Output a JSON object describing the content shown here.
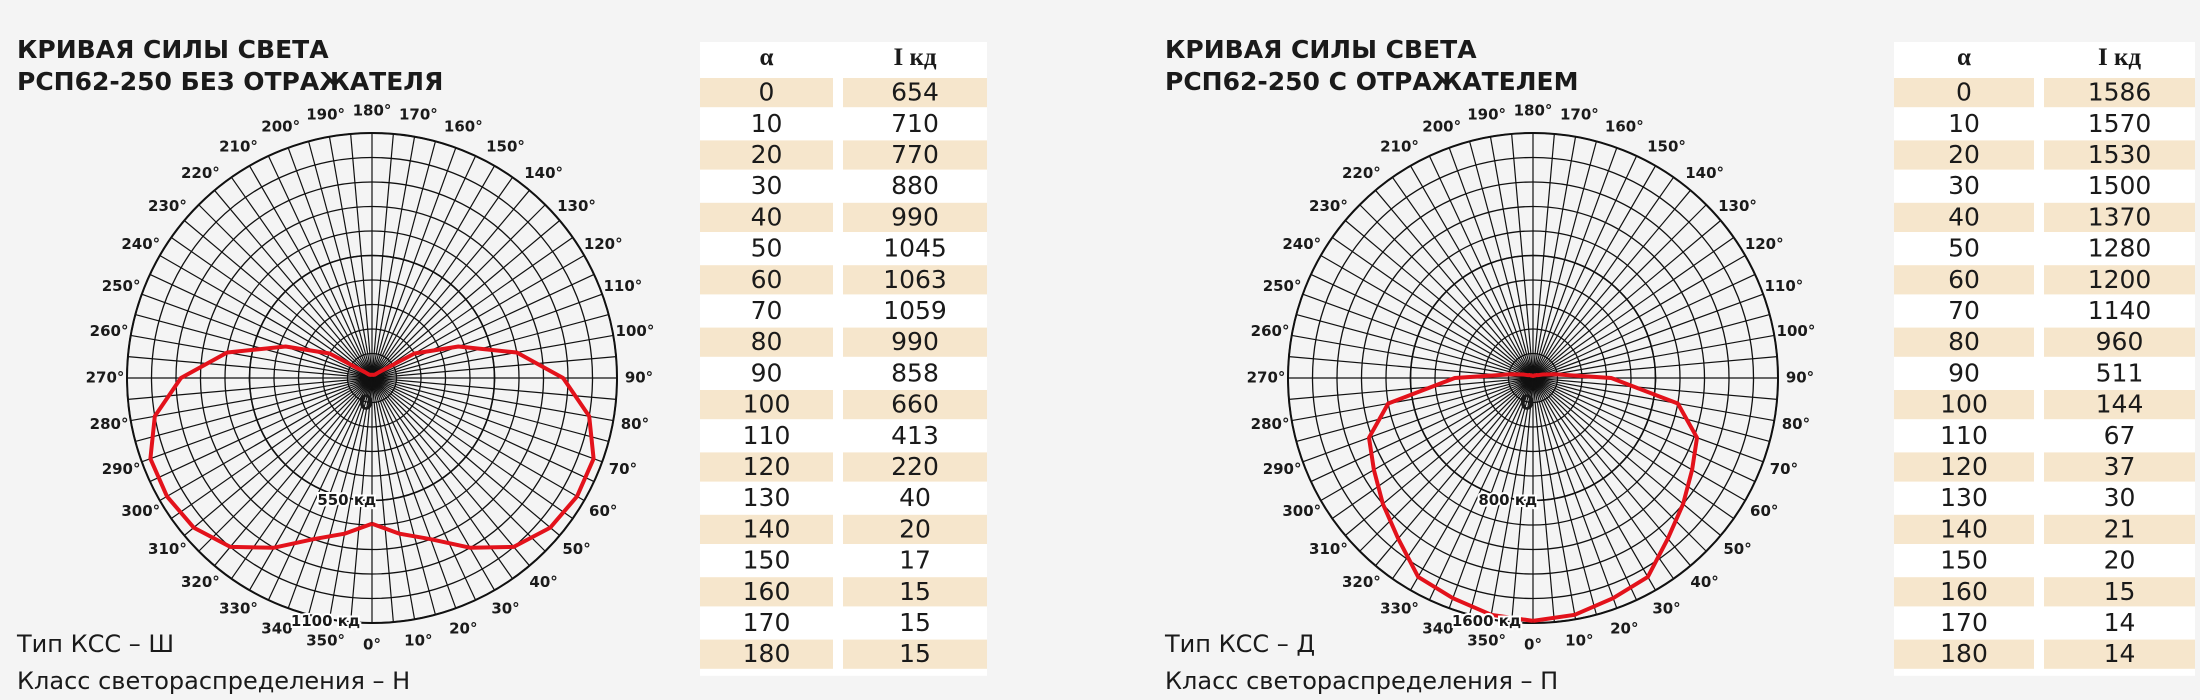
{
  "panels": [
    {
      "title": [
        "КРИВАЯ СИЛЫ СВЕТА",
        "РСП62-250 БЕЗ ОТРАЖАТЕЛЯ"
      ],
      "angle_labels": [
        {
          "value": 0,
          "label": "0°"
        },
        {
          "value": 10,
          "label": "10°"
        },
        {
          "value": 20,
          "label": "20°"
        },
        {
          "value": 30,
          "label": "30°"
        },
        {
          "value": 40,
          "label": "40°"
        },
        {
          "value": 50,
          "label": "50°"
        },
        {
          "value": 60,
          "label": "60°"
        },
        {
          "value": 70,
          "label": "70°"
        },
        {
          "value": 80,
          "label": "80°"
        },
        {
          "value": 90,
          "label": "90°"
        },
        {
          "value": 100,
          "label": "100°"
        },
        {
          "value": 110,
          "label": "110°"
        },
        {
          "value": 120,
          "label": "120°"
        },
        {
          "value": 130,
          "label": "130°"
        },
        {
          "value": 140,
          "label": "140°"
        },
        {
          "value": 150,
          "label": "150°"
        },
        {
          "value": 160,
          "label": "160°"
        },
        {
          "value": 170,
          "label": "170°"
        },
        {
          "value": 180,
          "label": "180°"
        },
        {
          "value": 190,
          "label": "190°"
        },
        {
          "value": 200,
          "label": "200°"
        },
        {
          "value": 210,
          "label": "210°"
        },
        {
          "value": 220,
          "label": "220°"
        },
        {
          "value": 230,
          "label": "230°"
        },
        {
          "value": 240,
          "label": "240°"
        },
        {
          "value": 250,
          "label": "250°"
        },
        {
          "value": 260,
          "label": "260°"
        },
        {
          "value": 270,
          "label": "270°"
        },
        {
          "value": 280,
          "label": "280°"
        },
        {
          "value": 290,
          "label": "290°"
        },
        {
          "value": 300,
          "label": "300°"
        },
        {
          "value": 310,
          "label": "310°"
        },
        {
          "value": 320,
          "label": "320°"
        },
        {
          "value": 330,
          "label": "330°"
        },
        {
          "value": 340,
          "label": "340°"
        },
        {
          "value": 350,
          "label": "350°"
        }
      ],
      "center_label": "0",
      "ring_ticks": [
        {
          "value": 550,
          "label": "550 кд"
        },
        {
          "value": 1100,
          "label": "1100 кд"
        }
      ],
      "curve_color": "#e3121b",
      "table": {
        "header": [
          "α",
          "I кд"
        ],
        "rows": [
          [
            0,
            654
          ],
          [
            10,
            710
          ],
          [
            20,
            770
          ],
          [
            30,
            880
          ],
          [
            40,
            990
          ],
          [
            50,
            1045
          ],
          [
            60,
            1063
          ],
          [
            70,
            1059
          ],
          [
            80,
            990
          ],
          [
            90,
            858
          ],
          [
            100,
            660
          ],
          [
            110,
            413
          ],
          [
            120,
            220
          ],
          [
            130,
            40
          ],
          [
            140,
            20
          ],
          [
            150,
            17
          ],
          [
            160,
            15
          ],
          [
            170,
            15
          ],
          [
            180,
            15
          ]
        ]
      },
      "footer": [
        "Тип КСС – Ш",
        "Класс светораспределения – Н"
      ]
    },
    {
      "title": [
        "КРИВАЯ СИЛЫ СВЕТА",
        "РСП62-250 С ОТРАЖАТЕЛЕМ"
      ],
      "angle_labels": [
        {
          "value": 0,
          "label": "0°"
        },
        {
          "value": 10,
          "label": "10°"
        },
        {
          "value": 20,
          "label": "20°"
        },
        {
          "value": 30,
          "label": "30°"
        },
        {
          "value": 40,
          "label": "40°"
        },
        {
          "value": 50,
          "label": "50°"
        },
        {
          "value": 60,
          "label": "60°"
        },
        {
          "value": 70,
          "label": "70°"
        },
        {
          "value": 80,
          "label": "80°"
        },
        {
          "value": 90,
          "label": "90°"
        },
        {
          "value": 100,
          "label": "100°"
        },
        {
          "value": 110,
          "label": "110°"
        },
        {
          "value": 120,
          "label": "120°"
        },
        {
          "value": 130,
          "label": "130°"
        },
        {
          "value": 140,
          "label": "140°"
        },
        {
          "value": 150,
          "label": "150°"
        },
        {
          "value": 160,
          "label": "160°"
        },
        {
          "value": 170,
          "label": "170°"
        },
        {
          "value": 180,
          "label": "180°"
        },
        {
          "value": 190,
          "label": "190°"
        },
        {
          "value": 200,
          "label": "200°"
        },
        {
          "value": 210,
          "label": "210°"
        },
        {
          "value": 220,
          "label": "220°"
        },
        {
          "value": 230,
          "label": "230°"
        },
        {
          "value": 240,
          "label": "240°"
        },
        {
          "value": 250,
          "label": "250°"
        },
        {
          "value": 260,
          "label": "260°"
        },
        {
          "value": 270,
          "label": "270°"
        },
        {
          "value": 280,
          "label": "280°"
        },
        {
          "value": 290,
          "label": "290°"
        },
        {
          "value": 300,
          "label": "300°"
        },
        {
          "value": 310,
          "label": "310°"
        },
        {
          "value": 320,
          "label": "320°"
        },
        {
          "value": 330,
          "label": "330°"
        },
        {
          "value": 340,
          "label": "340°"
        },
        {
          "value": 350,
          "label": "350°"
        }
      ],
      "center_label": "0",
      "ring_ticks": [
        {
          "value": 800,
          "label": "800 кд"
        },
        {
          "value": 1600,
          "label": "1600 кд"
        }
      ],
      "curve_color": "#e3121b",
      "table": {
        "header": [
          "α",
          "I кд"
        ],
        "rows": [
          [
            0,
            1586
          ],
          [
            10,
            1570
          ],
          [
            20,
            1530
          ],
          [
            30,
            1500
          ],
          [
            40,
            1370
          ],
          [
            50,
            1280
          ],
          [
            60,
            1200
          ],
          [
            70,
            1140
          ],
          [
            80,
            960
          ],
          [
            90,
            511
          ],
          [
            100,
            144
          ],
          [
            110,
            67
          ],
          [
            120,
            37
          ],
          [
            130,
            30
          ],
          [
            140,
            21
          ],
          [
            150,
            20
          ],
          [
            160,
            15
          ],
          [
            170,
            14
          ],
          [
            180,
            14
          ]
        ]
      },
      "footer": [
        "Тип КСС – Д",
        "Класс светораспределения – П"
      ]
    }
  ]
}
